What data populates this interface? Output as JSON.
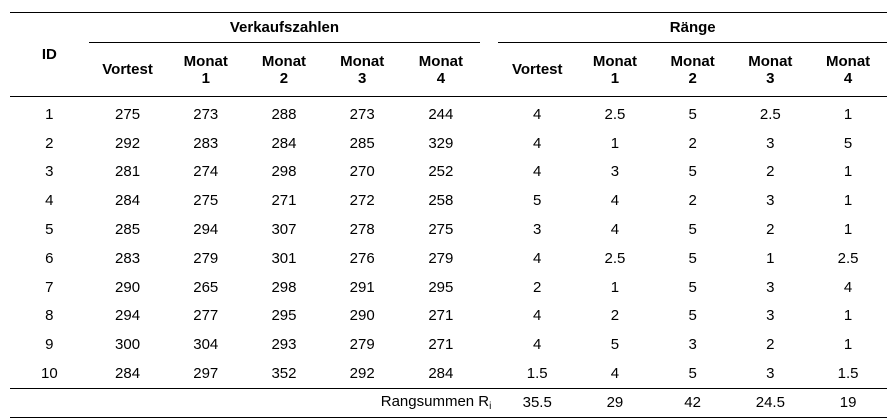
{
  "table": {
    "group_headers": {
      "sales": "Verkaufszahlen",
      "ranks": "Ränge"
    },
    "columns": {
      "id": "ID",
      "sales": [
        [
          "Vortest"
        ],
        [
          "Monat",
          "1"
        ],
        [
          "Monat",
          "2"
        ],
        [
          "Monat",
          "3"
        ],
        [
          "Monat",
          "4"
        ]
      ],
      "ranks": [
        [
          "Vortest"
        ],
        [
          "Monat",
          "1"
        ],
        [
          "Monat",
          "2"
        ],
        [
          "Monat",
          "3"
        ],
        [
          "Monat",
          "4"
        ]
      ]
    },
    "rows": [
      {
        "id": "1",
        "sales": [
          "275",
          "273",
          "288",
          "273",
          "244"
        ],
        "ranks": [
          "4",
          "2.5",
          "5",
          "2.5",
          "1"
        ]
      },
      {
        "id": "2",
        "sales": [
          "292",
          "283",
          "284",
          "285",
          "329"
        ],
        "ranks": [
          "4",
          "1",
          "2",
          "3",
          "5"
        ]
      },
      {
        "id": "3",
        "sales": [
          "281",
          "274",
          "298",
          "270",
          "252"
        ],
        "ranks": [
          "4",
          "3",
          "5",
          "2",
          "1"
        ]
      },
      {
        "id": "4",
        "sales": [
          "284",
          "275",
          "271",
          "272",
          "258"
        ],
        "ranks": [
          "5",
          "4",
          "2",
          "3",
          "1"
        ]
      },
      {
        "id": "5",
        "sales": [
          "285",
          "294",
          "307",
          "278",
          "275"
        ],
        "ranks": [
          "3",
          "4",
          "5",
          "2",
          "1"
        ]
      },
      {
        "id": "6",
        "sales": [
          "283",
          "279",
          "301",
          "276",
          "279"
        ],
        "ranks": [
          "4",
          "2.5",
          "5",
          "1",
          "2.5"
        ]
      },
      {
        "id": "7",
        "sales": [
          "290",
          "265",
          "298",
          "291",
          "295"
        ],
        "ranks": [
          "2",
          "1",
          "5",
          "3",
          "4"
        ]
      },
      {
        "id": "8",
        "sales": [
          "294",
          "277",
          "295",
          "290",
          "271"
        ],
        "ranks": [
          "4",
          "2",
          "5",
          "3",
          "1"
        ]
      },
      {
        "id": "9",
        "sales": [
          "300",
          "304",
          "293",
          "279",
          "271"
        ],
        "ranks": [
          "4",
          "5",
          "3",
          "2",
          "1"
        ]
      },
      {
        "id": "10",
        "sales": [
          "284",
          "297",
          "352",
          "292",
          "284"
        ],
        "ranks": [
          "1.5",
          "4",
          "5",
          "3",
          "1.5"
        ]
      }
    ],
    "rank_sums": {
      "label": "Rangsummen R",
      "label_subscript": "i",
      "values": [
        "35.5",
        "29",
        "42",
        "24.5",
        "19"
      ]
    }
  }
}
